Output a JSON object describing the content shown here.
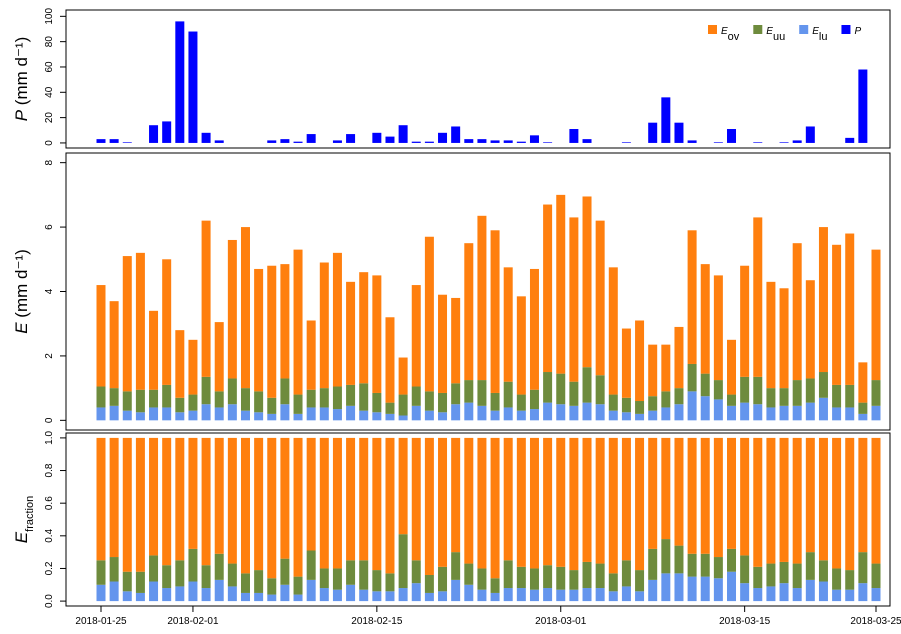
{
  "chart_data": [
    {
      "type": "bar",
      "ylabel": "P (mm d⁻¹)",
      "ylim": [
        -4,
        105
      ],
      "yticks": [
        0,
        20,
        40,
        60,
        80,
        100
      ],
      "legend": "top-right",
      "series": [
        {
          "name": "P",
          "color": "#0000ff",
          "values": [
            3,
            3,
            0.5,
            0,
            14,
            17,
            96,
            88,
            8,
            2,
            0,
            0,
            0,
            2,
            3,
            1,
            7,
            0,
            2,
            7,
            0,
            8,
            5,
            14,
            1,
            1,
            8,
            13,
            3,
            3,
            2,
            2,
            1,
            6,
            0.5,
            0,
            11,
            3,
            0,
            0,
            0.5,
            0,
            16,
            36,
            16,
            2,
            0,
            0.5,
            11,
            0,
            0.5,
            0,
            0.5,
            2,
            13,
            0,
            0,
            4,
            58,
            0
          ]
        }
      ]
    },
    {
      "type": "stacked_bar",
      "ylabel": "E (mm d⁻¹)",
      "ylim": [
        -0.3,
        8.3
      ],
      "yticks": [
        0,
        2,
        4,
        6,
        8
      ],
      "series": [
        {
          "name": "Elu",
          "color": "#6495ed",
          "values": [
            0.4,
            0.45,
            0.3,
            0.25,
            0.4,
            0.4,
            0.25,
            0.3,
            0.5,
            0.4,
            0.5,
            0.3,
            0.25,
            0.2,
            0.5,
            0.2,
            0.4,
            0.4,
            0.35,
            0.45,
            0.3,
            0.25,
            0.2,
            0.15,
            0.45,
            0.3,
            0.25,
            0.5,
            0.55,
            0.45,
            0.3,
            0.4,
            0.3,
            0.35,
            0.55,
            0.5,
            0.45,
            0.55,
            0.5,
            0.3,
            0.25,
            0.2,
            0.3,
            0.4,
            0.5,
            0.9,
            0.75,
            0.65,
            0.45,
            0.55,
            0.5,
            0.4,
            0.45,
            0.45,
            0.55,
            0.7,
            0.4,
            0.4,
            0.2,
            0.45
          ]
        },
        {
          "name": "Euu",
          "color": "#6e8b3d",
          "values": [
            0.65,
            0.55,
            0.6,
            0.7,
            0.55,
            0.7,
            0.45,
            0.5,
            0.85,
            0.5,
            0.8,
            0.7,
            0.65,
            0.5,
            0.8,
            0.6,
            0.55,
            0.6,
            0.7,
            0.65,
            0.85,
            0.6,
            0.35,
            0.65,
            0.6,
            0.6,
            0.6,
            0.65,
            0.7,
            0.8,
            0.55,
            0.8,
            0.5,
            0.6,
            0.95,
            0.95,
            0.75,
            1.1,
            0.9,
            0.5,
            0.45,
            0.4,
            0.45,
            0.5,
            0.5,
            0.85,
            0.7,
            0.6,
            0.35,
            0.8,
            0.85,
            0.6,
            0.55,
            0.8,
            0.75,
            0.8,
            0.7,
            0.7,
            0.35,
            0.8
          ]
        },
        {
          "name": "Eov",
          "color": "#ff7f0e",
          "values": [
            3.15,
            2.7,
            4.2,
            4.25,
            2.45,
            3.9,
            2.1,
            1.7,
            4.85,
            2.15,
            4.3,
            5.0,
            3.8,
            4.1,
            3.55,
            4.5,
            2.15,
            3.9,
            4.15,
            3.2,
            3.45,
            3.65,
            2.65,
            1.15,
            3.15,
            4.8,
            3.05,
            2.65,
            4.25,
            5.1,
            5.05,
            3.55,
            3.05,
            3.75,
            5.2,
            5.55,
            5.1,
            5.3,
            4.8,
            3.95,
            2.15,
            2.5,
            1.6,
            1.45,
            1.9,
            4.15,
            3.4,
            3.25,
            1.7,
            3.45,
            4.95,
            3.3,
            3.1,
            4.25,
            3.05,
            4.5,
            4.35,
            4.7,
            1.25,
            4.05
          ]
        }
      ]
    },
    {
      "type": "stacked_bar",
      "ylabel": "Efraction",
      "ylim": [
        -0.03,
        1.03
      ],
      "yticks": [
        {
          "value": 0,
          "label": "0.0"
        },
        0.2,
        0.4,
        0.6,
        0.8,
        {
          "value": 1,
          "label": "1.0"
        }
      ],
      "x": [
        "2018-01-25",
        "2018-01-26",
        "2018-01-27",
        "2018-01-28",
        "2018-01-29",
        "2018-01-30",
        "2018-01-31",
        "2018-02-01",
        "2018-02-02",
        "2018-02-03",
        "2018-02-04",
        "2018-02-05",
        "2018-02-06",
        "2018-02-07",
        "2018-02-08",
        "2018-02-09",
        "2018-02-10",
        "2018-02-11",
        "2018-02-12",
        "2018-02-13",
        "2018-02-14",
        "2018-02-15",
        "2018-02-16",
        "2018-02-17",
        "2018-02-18",
        "2018-02-19",
        "2018-02-20",
        "2018-02-21",
        "2018-02-22",
        "2018-02-23",
        "2018-02-24",
        "2018-02-25",
        "2018-02-26",
        "2018-02-27",
        "2018-02-28",
        "2018-03-01",
        "2018-03-02",
        "2018-03-03",
        "2018-03-04",
        "2018-03-05",
        "2018-03-06",
        "2018-03-07",
        "2018-03-08",
        "2018-03-09",
        "2018-03-10",
        "2018-03-11",
        "2018-03-12",
        "2018-03-13",
        "2018-03-14",
        "2018-03-15",
        "2018-03-16",
        "2018-03-17",
        "2018-03-18",
        "2018-03-19",
        "2018-03-20",
        "2018-03-21",
        "2018-03-22",
        "2018-03-23",
        "2018-03-24",
        "2018-03-25"
      ],
      "xticks": [
        "2018-01-25",
        "2018-02-01",
        "2018-02-15",
        "2018-03-01",
        "2018-03-15",
        "2018-03-25"
      ],
      "series": [
        {
          "color": "#6495ed",
          "values": [
            0.1,
            0.12,
            0.06,
            0.05,
            0.12,
            0.08,
            0.09,
            0.12,
            0.08,
            0.13,
            0.09,
            0.05,
            0.05,
            0.04,
            0.1,
            0.04,
            0.13,
            0.08,
            0.07,
            0.1,
            0.07,
            0.06,
            0.06,
            0.08,
            0.11,
            0.05,
            0.06,
            0.13,
            0.1,
            0.07,
            0.05,
            0.08,
            0.08,
            0.07,
            0.08,
            0.07,
            0.07,
            0.08,
            0.08,
            0.06,
            0.09,
            0.06,
            0.13,
            0.17,
            0.17,
            0.15,
            0.15,
            0.14,
            0.18,
            0.11,
            0.08,
            0.09,
            0.11,
            0.08,
            0.13,
            0.12,
            0.07,
            0.07,
            0.11,
            0.08
          ]
        },
        {
          "color": "#6e8b3d",
          "values": [
            0.15,
            0.15,
            0.12,
            0.13,
            0.16,
            0.14,
            0.16,
            0.2,
            0.14,
            0.16,
            0.14,
            0.12,
            0.14,
            0.1,
            0.16,
            0.11,
            0.18,
            0.12,
            0.13,
            0.15,
            0.18,
            0.13,
            0.11,
            0.33,
            0.14,
            0.11,
            0.15,
            0.17,
            0.13,
            0.13,
            0.09,
            0.17,
            0.13,
            0.13,
            0.14,
            0.14,
            0.12,
            0.16,
            0.15,
            0.11,
            0.16,
            0.13,
            0.19,
            0.21,
            0.17,
            0.14,
            0.14,
            0.13,
            0.14,
            0.17,
            0.13,
            0.14,
            0.13,
            0.15,
            0.17,
            0.13,
            0.13,
            0.12,
            0.19,
            0.15
          ]
        },
        {
          "color": "#ff7f0e",
          "values": [
            0.75,
            0.73,
            0.82,
            0.82,
            0.72,
            0.78,
            0.75,
            0.68,
            0.78,
            0.71,
            0.77,
            0.83,
            0.81,
            0.86,
            0.74,
            0.85,
            0.69,
            0.8,
            0.8,
            0.75,
            0.75,
            0.81,
            0.83,
            0.59,
            0.75,
            0.84,
            0.79,
            0.7,
            0.77,
            0.8,
            0.86,
            0.75,
            0.79,
            0.8,
            0.78,
            0.79,
            0.81,
            0.76,
            0.77,
            0.83,
            0.75,
            0.81,
            0.68,
            0.62,
            0.66,
            0.71,
            0.71,
            0.73,
            0.68,
            0.72,
            0.79,
            0.77,
            0.76,
            0.77,
            0.7,
            0.75,
            0.8,
            0.81,
            0.7,
            0.77
          ]
        }
      ]
    }
  ]
}
